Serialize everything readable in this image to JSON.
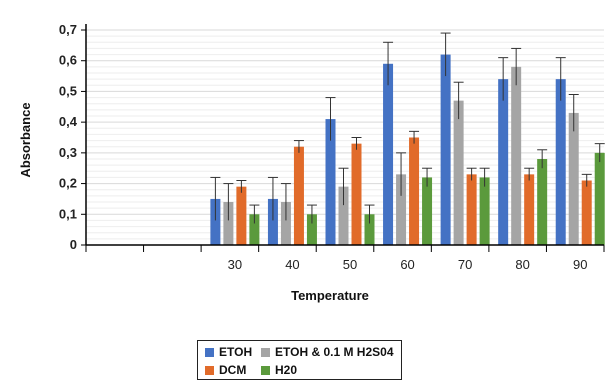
{
  "chart_data": {
    "type": "bar",
    "xlabel": "Temperature",
    "ylabel": "Absorbance",
    "categories": [
      "",
      "",
      "30",
      "40",
      "50",
      "60",
      "70",
      "80",
      "90"
    ],
    "ylim": [
      0,
      0.7
    ],
    "yticks": [
      "0",
      "0,1",
      "0,2",
      "0,3",
      "0,4",
      "0,5",
      "0,6",
      "0,7"
    ],
    "grid": true,
    "legend_position": "bottom",
    "series": [
      {
        "name": "ETOH",
        "color": "#4472C4",
        "values": [
          null,
          null,
          0.15,
          0.15,
          0.41,
          0.59,
          0.62,
          0.54,
          0.54
        ],
        "errors": [
          null,
          null,
          0.07,
          0.07,
          0.07,
          0.07,
          0.07,
          0.07,
          0.07
        ]
      },
      {
        "name": "ETOH & 0.1 M H2S04",
        "color": "#A5A5A5",
        "values": [
          null,
          null,
          0.14,
          0.14,
          0.19,
          0.23,
          0.47,
          0.58,
          0.43
        ],
        "errors": [
          null,
          null,
          0.06,
          0.06,
          0.06,
          0.07,
          0.06,
          0.06,
          0.06
        ]
      },
      {
        "name": "DCM",
        "color": "#E16B2A",
        "values": [
          null,
          null,
          0.19,
          0.32,
          0.33,
          0.35,
          0.23,
          0.23,
          0.21
        ],
        "errors": [
          null,
          null,
          0.02,
          0.02,
          0.02,
          0.02,
          0.02,
          0.02,
          0.02
        ]
      },
      {
        "name": "H20",
        "color": "#5B9A3C",
        "values": [
          null,
          null,
          0.1,
          0.1,
          0.1,
          0.22,
          0.22,
          0.28,
          0.3
        ],
        "errors": [
          null,
          null,
          0.03,
          0.03,
          0.03,
          0.03,
          0.03,
          0.03,
          0.03
        ]
      }
    ]
  }
}
